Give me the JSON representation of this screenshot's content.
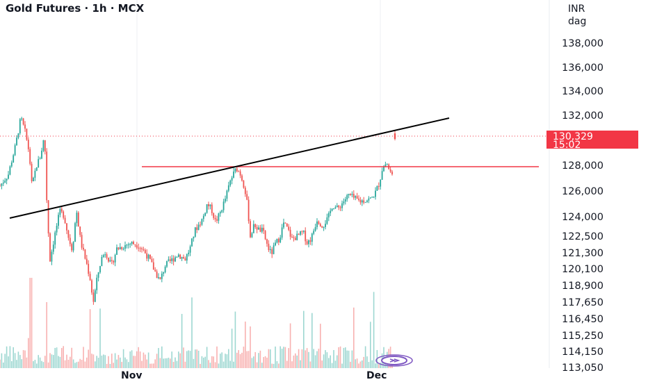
{
  "header": {
    "title": "Gold Futures · 1h · MCX"
  },
  "axis": {
    "currency": "INR",
    "period": "dag"
  },
  "price_tag": {
    "price": "130,329",
    "countdown": "15:02"
  },
  "colors": {
    "up": "#26a69a",
    "down": "#ef5350",
    "trendline": "#000000",
    "resistance": "#f23645",
    "tag_bg": "#f23645",
    "replay_icon": "#7e57c2"
  },
  "icons": {
    "replay": "replay-icon"
  },
  "chart_data": {
    "type": "candlestick",
    "title": "Gold Futures · 1h · MCX",
    "y_ticks": [
      "138,000",
      "136,000",
      "134,000",
      "132,000",
      "128,000",
      "126,000",
      "124,000",
      "122,500",
      "121,300",
      "120,100",
      "118,900",
      "117,650",
      "116,450",
      "115,250",
      "114,150",
      "113,050"
    ],
    "x_ticks": [
      "Nov",
      "Dec"
    ],
    "last_price": 130329,
    "resistance_level": 127800,
    "trendline": {
      "start_price": 123800,
      "end_price": 131500
    },
    "grid": true,
    "volume_pane": true
  }
}
